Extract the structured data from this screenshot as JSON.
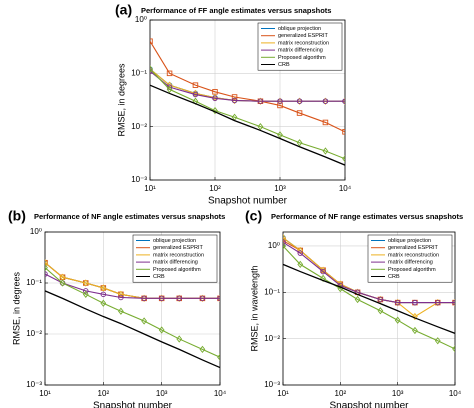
{
  "chart_data": [
    {
      "type": "line",
      "panel": "(a)",
      "title": "Performance of FF angle estimates versus snapshots",
      "xlabel": "Snapshot number",
      "ylabel": "RMSE, in degrees",
      "log_x": true,
      "log_y": true,
      "grid": true,
      "legend": "northeast",
      "xlim": [
        10,
        10000
      ],
      "ylim": [
        0.001,
        1
      ],
      "xticks": [
        {
          "value": 10,
          "label": "10¹"
        },
        {
          "value": 100,
          "label": "10²"
        },
        {
          "value": 1000,
          "label": "10³"
        },
        {
          "value": 10000,
          "label": "10⁴"
        }
      ],
      "yticks": [
        {
          "value": 0.001,
          "label": "10⁻³"
        },
        {
          "value": 0.01,
          "label": "10⁻²"
        },
        {
          "value": 0.1,
          "label": "10⁻¹"
        },
        {
          "value": 1,
          "label": "10⁰"
        }
      ],
      "x": [
        10,
        20,
        50,
        100,
        200,
        500,
        1000,
        2000,
        5000,
        10000
      ],
      "series": [
        {
          "name": "oblique projection",
          "color": "#0072bd",
          "marker": "circle",
          "values": [
            0.12,
            0.06,
            0.042,
            0.035,
            0.031,
            0.03,
            0.03,
            0.03,
            0.03,
            0.03
          ]
        },
        {
          "name": "generalized ESPRIT",
          "color": "#d95319",
          "marker": "square",
          "values": [
            0.4,
            0.1,
            0.06,
            0.045,
            0.036,
            0.03,
            0.025,
            0.018,
            0.012,
            0.008
          ]
        },
        {
          "name": "matrix reconstruction",
          "color": "#edb120",
          "marker": "diamond",
          "values": [
            0.12,
            0.06,
            0.042,
            0.035,
            0.031,
            0.03,
            0.03,
            0.03,
            0.03,
            0.03
          ]
        },
        {
          "name": "matrix differencing",
          "color": "#7e2f8e",
          "marker": "circle",
          "values": [
            0.11,
            0.055,
            0.04,
            0.034,
            0.031,
            0.03,
            0.03,
            0.03,
            0.03,
            0.03
          ]
        },
        {
          "name": "Proposed algorithm",
          "color": "#77ac30",
          "marker": "diamond",
          "values": [
            0.12,
            0.05,
            0.03,
            0.02,
            0.015,
            0.01,
            0.007,
            0.005,
            0.0035,
            0.0025
          ]
        },
        {
          "name": "CRB",
          "color": "#000000",
          "marker": "none",
          "values": [
            0.06,
            0.042,
            0.027,
            0.019,
            0.013,
            0.0085,
            0.006,
            0.0042,
            0.0027,
            0.0019
          ]
        }
      ]
    },
    {
      "type": "line",
      "panel": "(b)",
      "title": "Performance of NF angle estimates versus snapshots",
      "xlabel": "Snapshot number",
      "ylabel": "RMSE, in degrees",
      "log_x": true,
      "log_y": true,
      "grid": true,
      "legend": "northeast",
      "xlim": [
        10,
        10000
      ],
      "ylim": [
        0.001,
        1
      ],
      "xticks": [
        {
          "value": 10,
          "label": "10¹"
        },
        {
          "value": 100,
          "label": "10²"
        },
        {
          "value": 1000,
          "label": "10³"
        },
        {
          "value": 10000,
          "label": "10⁴"
        }
      ],
      "yticks": [
        {
          "value": 0.001,
          "label": "10⁻³"
        },
        {
          "value": 0.01,
          "label": "10⁻²"
        },
        {
          "value": 0.1,
          "label": "10⁻¹"
        },
        {
          "value": 1,
          "label": "10⁰"
        }
      ],
      "x": [
        10,
        20,
        50,
        100,
        200,
        500,
        1000,
        2000,
        5000,
        10000
      ],
      "series": [
        {
          "name": "oblique projection",
          "color": "#0072bd",
          "marker": "circle",
          "values": [
            0.25,
            0.13,
            0.1,
            0.08,
            0.06,
            0.05,
            0.05,
            0.05,
            0.05,
            0.05
          ]
        },
        {
          "name": "generalized ESPRIT",
          "color": "#d95319",
          "marker": "square",
          "values": [
            0.25,
            0.13,
            0.1,
            0.08,
            0.06,
            0.05,
            0.05,
            0.05,
            0.05,
            0.05
          ]
        },
        {
          "name": "matrix reconstruction",
          "color": "#edb120",
          "marker": "diamond",
          "values": [
            0.25,
            0.13,
            0.1,
            0.08,
            0.06,
            0.05,
            0.05,
            0.05,
            0.05,
            0.05
          ]
        },
        {
          "name": "matrix differencing",
          "color": "#7e2f8e",
          "marker": "circle",
          "values": [
            0.15,
            0.1,
            0.07,
            0.06,
            0.052,
            0.05,
            0.05,
            0.05,
            0.05,
            0.05
          ]
        },
        {
          "name": "Proposed algorithm",
          "color": "#77ac30",
          "marker": "diamond",
          "values": [
            0.2,
            0.1,
            0.06,
            0.04,
            0.028,
            0.018,
            0.012,
            0.008,
            0.005,
            0.0035
          ]
        },
        {
          "name": "CRB",
          "color": "#000000",
          "marker": "none",
          "values": [
            0.07,
            0.05,
            0.031,
            0.022,
            0.016,
            0.01,
            0.007,
            0.005,
            0.0031,
            0.0022
          ]
        }
      ]
    },
    {
      "type": "line",
      "panel": "(c)",
      "title": "Performance of NF range estimates versus snapshots",
      "xlabel": "Snapshot number",
      "ylabel": "RMSE, in wavelength",
      "log_x": true,
      "log_y": true,
      "grid": true,
      "legend": "northeast",
      "xlim": [
        10,
        10000
      ],
      "ylim": [
        0.001,
        2
      ],
      "xticks": [
        {
          "value": 10,
          "label": "10¹"
        },
        {
          "value": 100,
          "label": "10²"
        },
        {
          "value": 1000,
          "label": "10³"
        },
        {
          "value": 10000,
          "label": "10⁴"
        }
      ],
      "yticks": [
        {
          "value": 0.001,
          "label": "10⁻³"
        },
        {
          "value": 0.01,
          "label": "10⁻²"
        },
        {
          "value": 0.1,
          "label": "10⁻¹"
        },
        {
          "value": 1,
          "label": "10⁰"
        }
      ],
      "x": [
        10,
        20,
        50,
        100,
        200,
        500,
        1000,
        2000,
        5000,
        10000
      ],
      "series": [
        {
          "name": "oblique projection",
          "color": "#0072bd",
          "marker": "circle",
          "values": [
            1.5,
            0.8,
            0.3,
            0.15,
            0.1,
            0.07,
            0.06,
            0.06,
            0.06,
            0.06
          ]
        },
        {
          "name": "generalized ESPRIT",
          "color": "#d95319",
          "marker": "square",
          "values": [
            1.3,
            0.8,
            0.3,
            0.15,
            0.1,
            0.07,
            0.06,
            0.06,
            0.06,
            0.06
          ]
        },
        {
          "name": "matrix reconstruction",
          "color": "#edb120",
          "marker": "diamond",
          "values": [
            1.5,
            0.8,
            0.3,
            0.15,
            0.1,
            0.07,
            0.06,
            0.03,
            0.06,
            0.06
          ]
        },
        {
          "name": "matrix differencing",
          "color": "#7e2f8e",
          "marker": "circle",
          "values": [
            1.2,
            0.7,
            0.28,
            0.14,
            0.1,
            0.07,
            0.06,
            0.06,
            0.06,
            0.06
          ]
        },
        {
          "name": "Proposed algorithm",
          "color": "#77ac30",
          "marker": "diamond",
          "values": [
            1.0,
            0.4,
            0.2,
            0.12,
            0.07,
            0.04,
            0.025,
            0.015,
            0.009,
            0.006
          ]
        },
        {
          "name": "CRB",
          "color": "#000000",
          "marker": "none",
          "values": [
            0.4,
            0.28,
            0.18,
            0.13,
            0.09,
            0.057,
            0.04,
            0.028,
            0.018,
            0.013
          ]
        }
      ]
    }
  ]
}
